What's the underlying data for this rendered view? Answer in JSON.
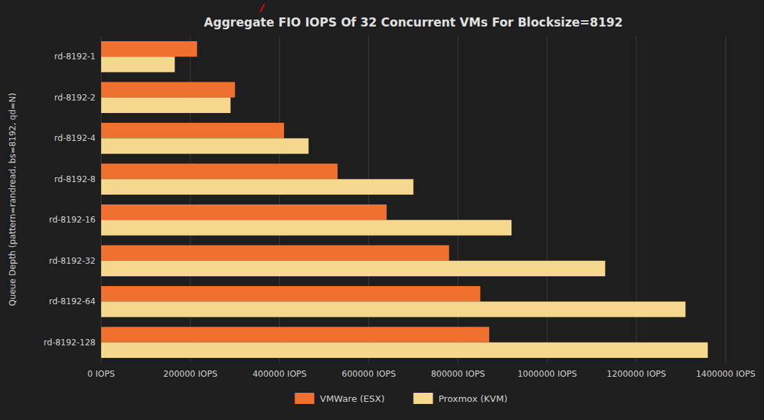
{
  "chart_data": {
    "type": "bar",
    "orientation": "horizontal",
    "title": "Aggregate FIO IOPS Of 32 Concurrent VMs For Blocksize=8192",
    "ylabel": "Queue Depth (pattern=randread, bs=8192, qd=N)",
    "categories": [
      "rd-8192-128",
      "rd-8192-64",
      "rd-8192-32",
      "rd-8192-16",
      "rd-8192-8",
      "rd-8192-4",
      "rd-8192-2",
      "rd-8192-1"
    ],
    "series": [
      {
        "name": "VMWare (ESX)",
        "color": "#f07030",
        "values": [
          870000,
          850000,
          780000,
          640000,
          530000,
          410000,
          300000,
          215000
        ]
      },
      {
        "name": "Proxmox (KVM)",
        "color": "#f5d78e",
        "values": [
          1360000,
          1310000,
          1130000,
          920000,
          700000,
          465000,
          290000,
          165000
        ]
      }
    ],
    "xlim": [
      0,
      1400000
    ],
    "xticks": [
      {
        "value": 0,
        "label": "0 IOPS"
      },
      {
        "value": 200000,
        "label": "200000 IOPS"
      },
      {
        "value": 400000,
        "label": "400000 IOPS"
      },
      {
        "value": 600000,
        "label": "600000 IOPS"
      },
      {
        "value": 800000,
        "label": "800000 IOPS"
      },
      {
        "value": 1000000,
        "label": "1000000 IOPS"
      },
      {
        "value": 1200000,
        "label": "1200000 IOPS"
      },
      {
        "value": 1400000,
        "label": "1400000 IOPS"
      }
    ],
    "grid": true,
    "legend": "bottom",
    "annotations": [
      {
        "text": "/",
        "color": "#ff0000"
      }
    ]
  }
}
